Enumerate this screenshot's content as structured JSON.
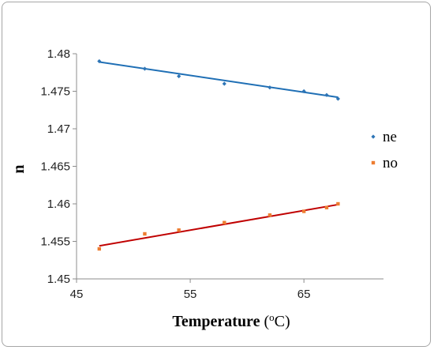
{
  "chart_data": {
    "type": "scatter",
    "xlabel_main": "Temperature",
    "xlabel_unit_open": " (",
    "xlabel_unit_sup": "o",
    "xlabel_unit_close": "C)",
    "ylabel": "n",
    "xlim": [
      45,
      72
    ],
    "ylim": [
      1.45,
      1.48
    ],
    "xticks": [
      45,
      55,
      65
    ],
    "xtick_labels": [
      "45",
      "55",
      "65"
    ],
    "yticks": [
      1.45,
      1.455,
      1.46,
      1.465,
      1.47,
      1.475,
      1.48
    ],
    "ytick_labels": [
      "1.45",
      "1.455",
      "1.46",
      "1.465",
      "1.47",
      "1.475",
      "1.48"
    ],
    "grid": false,
    "legend_position": "right",
    "series": [
      {
        "name": "ne",
        "marker": "diamond",
        "color": "#2e75b6",
        "trendline_color": "#1f6fb5",
        "trendline": [
          [
            47,
            1.4789
          ],
          [
            68,
            1.4742
          ]
        ],
        "x": [
          47,
          51,
          54,
          58,
          62,
          65,
          67,
          68
        ],
        "y": [
          1.479,
          1.478,
          1.477,
          1.476,
          1.4755,
          1.475,
          1.4745,
          1.474
        ]
      },
      {
        "name": "no",
        "marker": "square",
        "color": "#ed7d31",
        "trendline_color": "#c00000",
        "trendline": [
          [
            47,
            1.4544
          ],
          [
            68,
            1.4599
          ]
        ],
        "x": [
          47,
          51,
          54,
          58,
          62,
          65,
          67,
          68
        ],
        "y": [
          1.454,
          1.456,
          1.4565,
          1.4575,
          1.4585,
          1.459,
          1.4595,
          1.46
        ]
      }
    ]
  }
}
